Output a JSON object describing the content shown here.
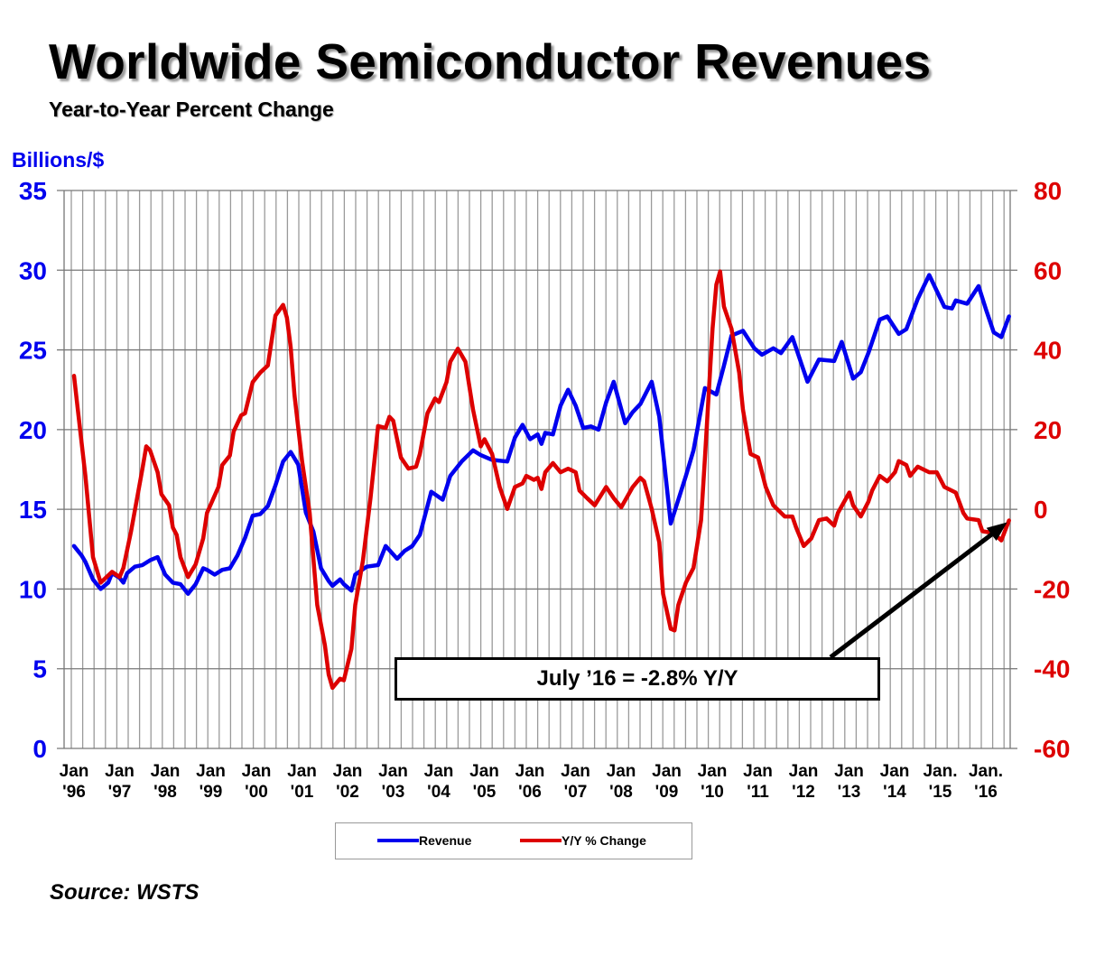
{
  "chart_data": {
    "type": "line",
    "title": "Worldwide Semiconductor Revenues",
    "subtitle": "Year-to-Year Percent Change",
    "ylabel": "Billions/$",
    "ylim": [
      0,
      35
    ],
    "yticks": [
      "0",
      "5",
      "10",
      "15",
      "20",
      "25",
      "30",
      "35"
    ],
    "y2lim": [
      -60,
      80
    ],
    "y2ticks": [
      "-60",
      "-40",
      "-20",
      "0",
      "20",
      "40",
      "60",
      "80"
    ],
    "xlim": [
      "1996-01",
      "2016-07"
    ],
    "xtick_labels": [
      [
        "Jan",
        "'96"
      ],
      [
        "Jan",
        "'97"
      ],
      [
        "Jan",
        "'98"
      ],
      [
        "Jan",
        "'99"
      ],
      [
        "Jan",
        "'00"
      ],
      [
        "Jan",
        "'01"
      ],
      [
        "Jan",
        "'02"
      ],
      [
        "Jan",
        "'03"
      ],
      [
        "Jan",
        "'04"
      ],
      [
        "Jan",
        "'05"
      ],
      [
        "Jan",
        "'06"
      ],
      [
        "Jan",
        "'07"
      ],
      [
        "Jan",
        "'08"
      ],
      [
        "Jan",
        "'09"
      ],
      [
        "Jan",
        "'10"
      ],
      [
        "Jan",
        "'11"
      ],
      [
        "Jan",
        "'12"
      ],
      [
        "Jan",
        "'13"
      ],
      [
        "Jan",
        "'14"
      ],
      [
        "Jan.",
        "'15"
      ],
      [
        "Jan.",
        "'16"
      ]
    ],
    "grid": true,
    "legend_placement": "bottom",
    "annotation": "July ’16 = -2.8% Y/Y",
    "source": "Source: WSTS",
    "series": [
      {
        "name": "Revenue",
        "axis": "left",
        "color": "#0000ee",
        "points": [
          [
            "1996-01",
            12.7
          ],
          [
            "1996-03",
            12.1
          ],
          [
            "1996-04",
            11.7
          ],
          [
            "1996-06",
            10.6
          ],
          [
            "1996-08",
            10.0
          ],
          [
            "1996-10",
            10.4
          ],
          [
            "1996-11",
            11.0
          ],
          [
            "1997-01",
            10.7
          ],
          [
            "1997-02",
            10.4
          ],
          [
            "1997-03",
            11.0
          ],
          [
            "1997-05",
            11.4
          ],
          [
            "1997-07",
            11.5
          ],
          [
            "1997-09",
            11.8
          ],
          [
            "1997-11",
            12.0
          ],
          [
            "1998-01",
            10.9
          ],
          [
            "1998-03",
            10.4
          ],
          [
            "1998-05",
            10.3
          ],
          [
            "1998-07",
            9.7
          ],
          [
            "1998-09",
            10.3
          ],
          [
            "1998-11",
            11.3
          ],
          [
            "1998-12",
            11.2
          ],
          [
            "1999-02",
            10.9
          ],
          [
            "1999-04",
            11.2
          ],
          [
            "1999-06",
            11.3
          ],
          [
            "1999-08",
            12.1
          ],
          [
            "1999-10",
            13.2
          ],
          [
            "1999-12",
            14.6
          ],
          [
            "2000-02",
            14.7
          ],
          [
            "2000-04",
            15.2
          ],
          [
            "2000-06",
            16.5
          ],
          [
            "2000-08",
            18.0
          ],
          [
            "2000-10",
            18.6
          ],
          [
            "2000-12",
            17.8
          ],
          [
            "2001-02",
            14.8
          ],
          [
            "2001-04",
            13.6
          ],
          [
            "2001-06",
            11.3
          ],
          [
            "2001-08",
            10.5
          ],
          [
            "2001-09",
            10.2
          ],
          [
            "2001-11",
            10.6
          ],
          [
            "2001-12",
            10.3
          ],
          [
            "2002-02",
            9.9
          ],
          [
            "2002-03",
            10.9
          ],
          [
            "2002-06",
            11.4
          ],
          [
            "2002-09",
            11.5
          ],
          [
            "2002-11",
            12.7
          ],
          [
            "2003-02",
            11.9
          ],
          [
            "2003-04",
            12.4
          ],
          [
            "2003-06",
            12.7
          ],
          [
            "2003-08",
            13.4
          ],
          [
            "2003-11",
            16.1
          ],
          [
            "2004-02",
            15.6
          ],
          [
            "2004-04",
            17.1
          ],
          [
            "2004-07",
            18.0
          ],
          [
            "2004-10",
            18.7
          ],
          [
            "2004-12",
            18.4
          ],
          [
            "2005-03",
            18.1
          ],
          [
            "2005-07",
            18.0
          ],
          [
            "2005-09",
            19.5
          ],
          [
            "2005-11",
            20.3
          ],
          [
            "2006-01",
            19.4
          ],
          [
            "2006-03",
            19.7
          ],
          [
            "2006-04",
            19.1
          ],
          [
            "2006-05",
            19.8
          ],
          [
            "2006-07",
            19.7
          ],
          [
            "2006-09",
            21.5
          ],
          [
            "2006-11",
            22.5
          ],
          [
            "2007-01",
            21.5
          ],
          [
            "2007-03",
            20.1
          ],
          [
            "2007-05",
            20.2
          ],
          [
            "2007-07",
            20.0
          ],
          [
            "2007-09",
            21.7
          ],
          [
            "2007-11",
            23.0
          ],
          [
            "2008-02",
            20.4
          ],
          [
            "2008-04",
            21.1
          ],
          [
            "2008-06",
            21.6
          ],
          [
            "2008-09",
            23.0
          ],
          [
            "2008-11",
            20.8
          ],
          [
            "2009-02",
            14.1
          ],
          [
            "2009-06",
            17.1
          ],
          [
            "2009-08",
            18.7
          ],
          [
            "2009-11",
            22.6
          ],
          [
            "2010-02",
            22.2
          ],
          [
            "2010-04",
            24.0
          ],
          [
            "2010-06",
            25.9
          ],
          [
            "2010-09",
            26.2
          ],
          [
            "2010-12",
            25.1
          ],
          [
            "2011-02",
            24.7
          ],
          [
            "2011-05",
            25.1
          ],
          [
            "2011-07",
            24.8
          ],
          [
            "2011-10",
            25.8
          ],
          [
            "2012-02",
            23.0
          ],
          [
            "2012-05",
            24.4
          ],
          [
            "2012-09",
            24.3
          ],
          [
            "2012-11",
            25.5
          ],
          [
            "2013-02",
            23.2
          ],
          [
            "2013-04",
            23.6
          ],
          [
            "2013-06",
            24.8
          ],
          [
            "2013-09",
            26.9
          ],
          [
            "2013-11",
            27.1
          ],
          [
            "2014-02",
            26.0
          ],
          [
            "2014-04",
            26.3
          ],
          [
            "2014-07",
            28.2
          ],
          [
            "2014-10",
            29.7
          ],
          [
            "2015-02",
            27.7
          ],
          [
            "2015-04",
            27.6
          ],
          [
            "2015-05",
            28.1
          ],
          [
            "2015-08",
            27.9
          ],
          [
            "2015-11",
            29.0
          ],
          [
            "2016-01",
            27.5
          ],
          [
            "2016-03",
            26.1
          ],
          [
            "2016-05",
            25.8
          ],
          [
            "2016-07",
            27.1
          ]
        ]
      },
      {
        "name": "Y/Y % Change",
        "axis": "right",
        "color": "#dd0000",
        "points": [
          [
            "1996-01",
            33.5
          ],
          [
            "1996-02",
            25
          ],
          [
            "1996-04",
            8.4
          ],
          [
            "1996-06",
            -12
          ],
          [
            "1996-08",
            -18.4
          ],
          [
            "1996-11",
            -15.7
          ],
          [
            "1997-01",
            -17
          ],
          [
            "1997-02",
            -14.7
          ],
          [
            "1997-04",
            -5.5
          ],
          [
            "1997-07",
            10.2
          ],
          [
            "1997-08",
            15.8
          ],
          [
            "1997-09",
            14.8
          ],
          [
            "1997-11",
            9.3
          ],
          [
            "1997-12",
            3.8
          ],
          [
            "1998-02",
            1.0
          ],
          [
            "1998-03",
            -4.6
          ],
          [
            "1998-04",
            -6.4
          ],
          [
            "1998-05",
            -12
          ],
          [
            "1998-07",
            -17
          ],
          [
            "1998-09",
            -13.8
          ],
          [
            "1998-11",
            -7.3
          ],
          [
            "1998-12",
            -0.9
          ],
          [
            "1999-03",
            5.6
          ],
          [
            "1999-04",
            11.1
          ],
          [
            "1999-06",
            13.5
          ],
          [
            "1999-07",
            19.5
          ],
          [
            "1999-09",
            23.6
          ],
          [
            "1999-10",
            24.1
          ],
          [
            "1999-12",
            31.9
          ],
          [
            "2000-02",
            34.3
          ],
          [
            "2000-04",
            36.1
          ],
          [
            "2000-06",
            48.6
          ],
          [
            "2000-08",
            51.3
          ],
          [
            "2000-09",
            48.1
          ],
          [
            "2000-10",
            40.7
          ],
          [
            "2000-11",
            28.7
          ],
          [
            "2001-01",
            12.1
          ],
          [
            "2001-03",
            -0.9
          ],
          [
            "2001-05",
            -24
          ],
          [
            "2001-07",
            -34.1
          ],
          [
            "2001-08",
            -41.5
          ],
          [
            "2001-09",
            -44.8
          ],
          [
            "2001-11",
            -42.5
          ],
          [
            "2001-12",
            -42.9
          ],
          [
            "2002-02",
            -35
          ],
          [
            "2002-03",
            -24
          ],
          [
            "2002-05",
            -12.9
          ],
          [
            "2002-07",
            2.8
          ],
          [
            "2002-09",
            20.9
          ],
          [
            "2002-11",
            20.4
          ],
          [
            "2002-12",
            23.2
          ],
          [
            "2003-01",
            22.2
          ],
          [
            "2003-03",
            13
          ],
          [
            "2003-05",
            10.2
          ],
          [
            "2003-07",
            10.7
          ],
          [
            "2003-08",
            13.9
          ],
          [
            "2003-10",
            24.1
          ],
          [
            "2003-12",
            27.8
          ],
          [
            "2004-01",
            26.9
          ],
          [
            "2004-03",
            31.9
          ],
          [
            "2004-04",
            37
          ],
          [
            "2004-06",
            40.3
          ],
          [
            "2004-08",
            37
          ],
          [
            "2004-10",
            25
          ],
          [
            "2004-12",
            15.8
          ],
          [
            "2005-01",
            17.6
          ],
          [
            "2005-03",
            13.9
          ],
          [
            "2005-05",
            5.6
          ],
          [
            "2005-07",
            0.1
          ],
          [
            "2005-09",
            5.6
          ],
          [
            "2005-11",
            6.5
          ],
          [
            "2005-12",
            8.4
          ],
          [
            "2006-02",
            7.4
          ],
          [
            "2006-03",
            7.9
          ],
          [
            "2006-04",
            5.1
          ],
          [
            "2006-05",
            9.3
          ],
          [
            "2006-07",
            11.6
          ],
          [
            "2006-09",
            9.3
          ],
          [
            "2006-11",
            10.2
          ],
          [
            "2007-01",
            9.3
          ],
          [
            "2007-02",
            4.7
          ],
          [
            "2007-04",
            2.8
          ],
          [
            "2007-06",
            1.0
          ],
          [
            "2007-09",
            5.6
          ],
          [
            "2007-11",
            2.8
          ],
          [
            "2008-01",
            0.5
          ],
          [
            "2008-04",
            5.6
          ],
          [
            "2008-06",
            7.9
          ],
          [
            "2008-07",
            7.0
          ],
          [
            "2008-09",
            0.1
          ],
          [
            "2008-11",
            -8.3
          ],
          [
            "2008-12",
            -21.2
          ],
          [
            "2009-02",
            -30
          ],
          [
            "2009-03",
            -30.4
          ],
          [
            "2009-04",
            -24
          ],
          [
            "2009-06",
            -18.4
          ],
          [
            "2009-08",
            -14.7
          ],
          [
            "2009-10",
            -2.7
          ],
          [
            "2009-11",
            13
          ],
          [
            "2010-01",
            45.3
          ],
          [
            "2010-02",
            56.4
          ],
          [
            "2010-03",
            59.7
          ],
          [
            "2010-04",
            50.9
          ],
          [
            "2010-06",
            45.3
          ],
          [
            "2010-08",
            34.3
          ],
          [
            "2010-09",
            25
          ],
          [
            "2010-11",
            13.9
          ],
          [
            "2011-01",
            13
          ],
          [
            "2011-03",
            5.6
          ],
          [
            "2011-05",
            1.0
          ],
          [
            "2011-08",
            -1.8
          ],
          [
            "2011-10",
            -1.8
          ],
          [
            "2011-11",
            -4.6
          ],
          [
            "2012-01",
            -9.2
          ],
          [
            "2012-03",
            -7.3
          ],
          [
            "2012-05",
            -2.7
          ],
          [
            "2012-07",
            -2.3
          ],
          [
            "2012-09",
            -4.1
          ],
          [
            "2012-10",
            -0.9
          ],
          [
            "2013-01",
            4.2
          ],
          [
            "2013-02",
            1.0
          ],
          [
            "2013-04",
            -1.8
          ],
          [
            "2013-06",
            1.9
          ],
          [
            "2013-07",
            4.7
          ],
          [
            "2013-09",
            8.4
          ],
          [
            "2013-11",
            7.0
          ],
          [
            "2014-01",
            9.3
          ],
          [
            "2014-02",
            12.1
          ],
          [
            "2014-04",
            11.1
          ],
          [
            "2014-05",
            8.4
          ],
          [
            "2014-07",
            10.7
          ],
          [
            "2014-10",
            9.3
          ],
          [
            "2014-12",
            9.3
          ],
          [
            "2015-02",
            5.6
          ],
          [
            "2015-05",
            4.2
          ],
          [
            "2015-07",
            -0.9
          ],
          [
            "2015-08",
            -2.3
          ],
          [
            "2015-11",
            -2.7
          ],
          [
            "2015-12",
            -5.5
          ],
          [
            "2016-03",
            -6.0
          ],
          [
            "2016-05",
            -7.8
          ],
          [
            "2016-07",
            -2.8
          ]
        ]
      }
    ]
  },
  "legend": {
    "revenue": "Revenue",
    "yoy": "Y/Y % Change"
  }
}
